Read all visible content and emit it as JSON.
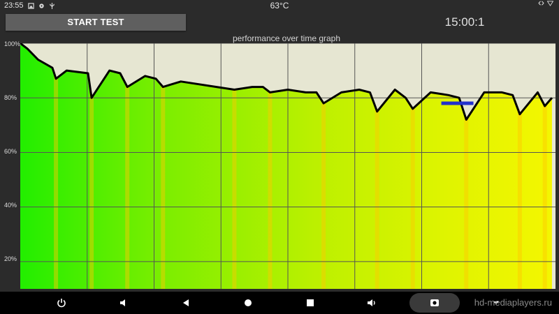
{
  "status_bar": {
    "time": "23:55",
    "temperature": "63°C",
    "left_icons": [
      "image-icon",
      "settings-icon",
      "usb-icon"
    ],
    "right_icons": [
      "transfer-arrows-icon",
      "wifi-icon"
    ]
  },
  "app": {
    "start_button_label": "START TEST",
    "timer": "15:00:1",
    "graph_title": "performance over time graph"
  },
  "graph": {
    "y_tick_labels": [
      "100%",
      "80%",
      "60%",
      "40%",
      "20%"
    ],
    "plot_background": "#e6e6d2",
    "line_color": "#000000",
    "highlight_color": "#2230cc"
  },
  "chart_data": {
    "type": "line",
    "title": "performance over time graph",
    "xlabel": "",
    "ylabel": "",
    "x_unit": "minutes",
    "xlim": [
      0,
      15
    ],
    "ylim": [
      10,
      100
    ],
    "grid": true,
    "series": [
      {
        "x": [
          0,
          0.2,
          0.5,
          0.9,
          1.0,
          1.3,
          1.9,
          2.0,
          2.5,
          2.8,
          3.0,
          3.5,
          3.8,
          4.0,
          4.5,
          5.0,
          5.5,
          6.0,
          6.5,
          6.8,
          7.0,
          7.5,
          8.0,
          8.3,
          8.5,
          9.0,
          9.5,
          9.8,
          10.0,
          10.5,
          10.8,
          11.0,
          11.5,
          12.0,
          12.3,
          12.5,
          13.0,
          13.5,
          13.8,
          14.0,
          14.5,
          14.7,
          14.9
        ],
        "y": [
          100,
          98,
          94,
          91,
          87,
          90,
          89,
          80,
          90,
          89,
          84,
          88,
          87,
          84,
          86,
          85,
          84,
          83,
          84,
          84,
          82,
          83,
          82,
          82,
          78,
          82,
          83,
          82,
          75,
          83,
          80,
          76,
          82,
          81,
          80,
          72,
          82,
          82,
          81,
          74,
          82,
          77,
          80
        ]
      }
    ],
    "highlight": {
      "x": [
        11.8,
        12.7
      ],
      "y": 78
    }
  },
  "nav_bar": {
    "buttons": [
      "power-icon",
      "volume-down-icon",
      "back-icon",
      "home-icon",
      "recents-icon",
      "volume-up-icon",
      "screenshot-icon",
      "menu-down-icon"
    ],
    "watermark": "hd-mediaplayers.ru"
  }
}
